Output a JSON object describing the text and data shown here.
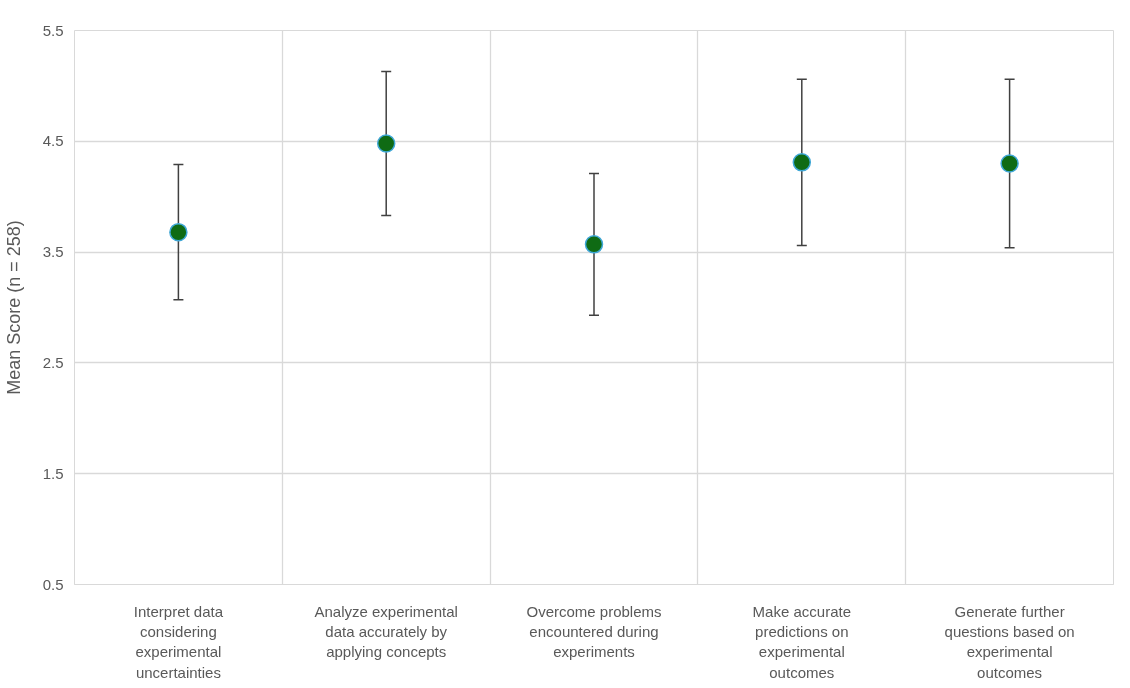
{
  "chart_data": {
    "type": "scatter",
    "ylabel": "Mean Score (n = 258)",
    "categories": [
      "Interpret data considering experimental uncertainties",
      "Analyze experimental data accurately by applying concepts",
      "Overcome problems encountered during experiments",
      "Make accurate predictions on experimental outcomes",
      "Generate further questions based on experimental outcomes"
    ],
    "series": [
      {
        "color": "#0f6b14",
        "values": [
          3.68,
          4.48,
          3.57,
          4.31,
          4.3
        ],
        "errors": [
          0.61,
          0.65,
          0.64,
          0.75,
          0.76
        ]
      }
    ],
    "ylim": [
      0.5,
      5.5
    ],
    "yticks": [
      0.5,
      1.5,
      2.5,
      3.5,
      4.5,
      5.5
    ],
    "grid": true,
    "marker": "circle"
  }
}
